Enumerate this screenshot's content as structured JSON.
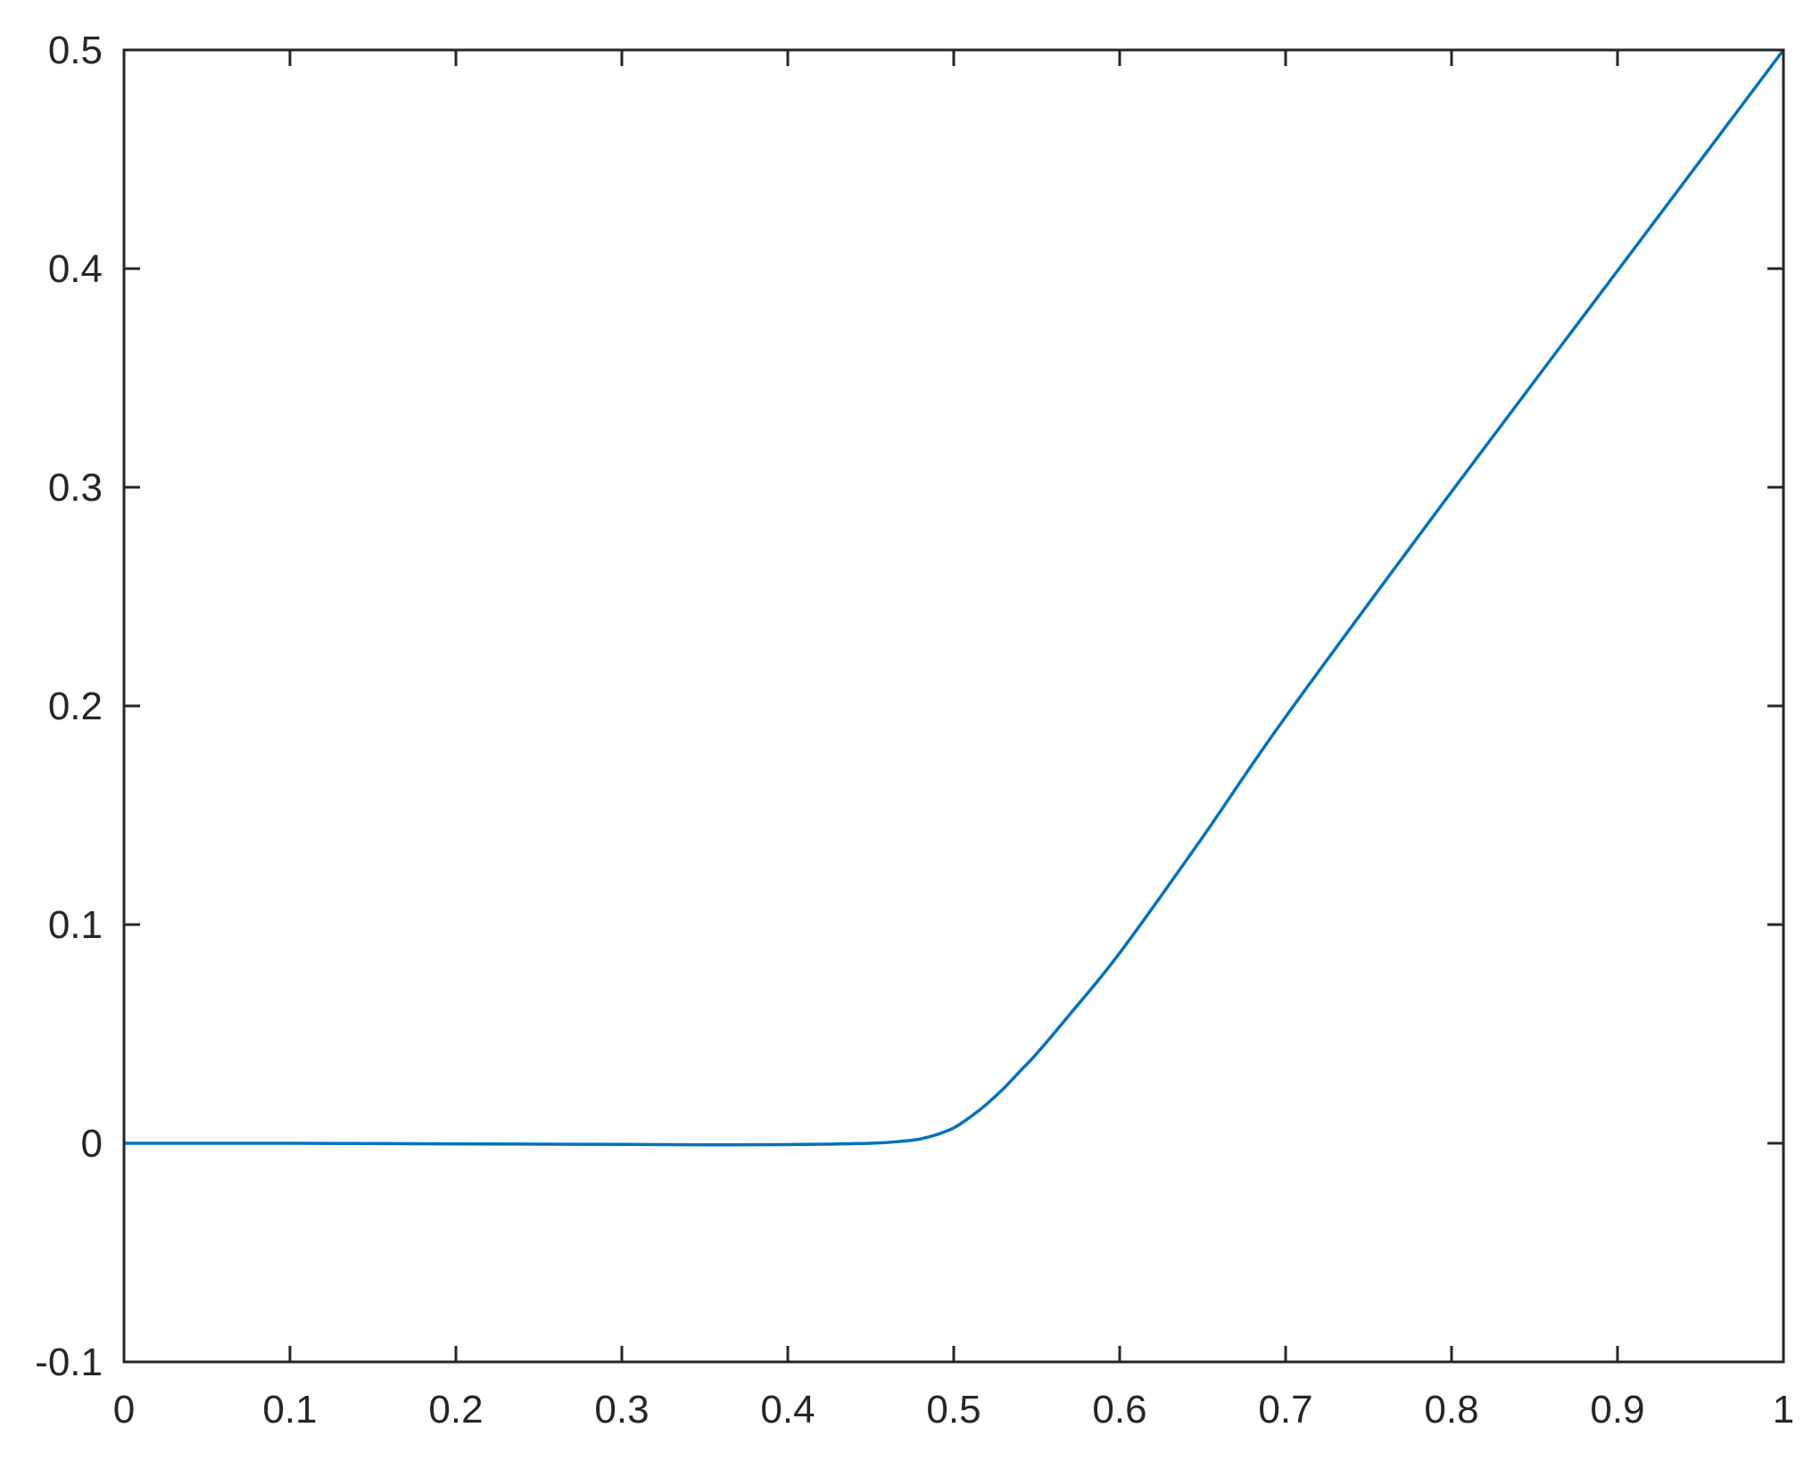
{
  "chart_data": {
    "type": "line",
    "title": "",
    "xlabel": "",
    "ylabel": "",
    "xlim": [
      0,
      1
    ],
    "ylim": [
      -0.1,
      0.5
    ],
    "grid": false,
    "box": true,
    "x_ticks": [
      "0",
      "0.1",
      "0.2",
      "0.3",
      "0.4",
      "0.5",
      "0.6",
      "0.7",
      "0.8",
      "0.9",
      "1"
    ],
    "y_ticks": [
      "-0.1",
      "0",
      "0.1",
      "0.2",
      "0.3",
      "0.4",
      "0.5"
    ],
    "colors": {
      "axis": "#262626",
      "line": "#0072BD"
    },
    "series": [
      {
        "x": [
          0,
          0.1,
          0.2,
          0.3,
          0.35,
          0.4,
          0.45,
          0.47,
          0.48,
          0.49,
          0.5,
          0.51,
          0.52,
          0.53,
          0.54,
          0.55,
          0.57,
          0.6,
          0.65,
          0.7,
          0.8,
          0.9,
          1.0
        ],
        "y": [
          0,
          0,
          -0.0003,
          -0.0005,
          -0.0007,
          -0.0006,
          0.0,
          0.001,
          0.002,
          0.004,
          0.007,
          0.012,
          0.018,
          0.025,
          0.033,
          0.041,
          0.059,
          0.087,
          0.14,
          0.195,
          0.298,
          0.399,
          0.5
        ]
      }
    ]
  }
}
